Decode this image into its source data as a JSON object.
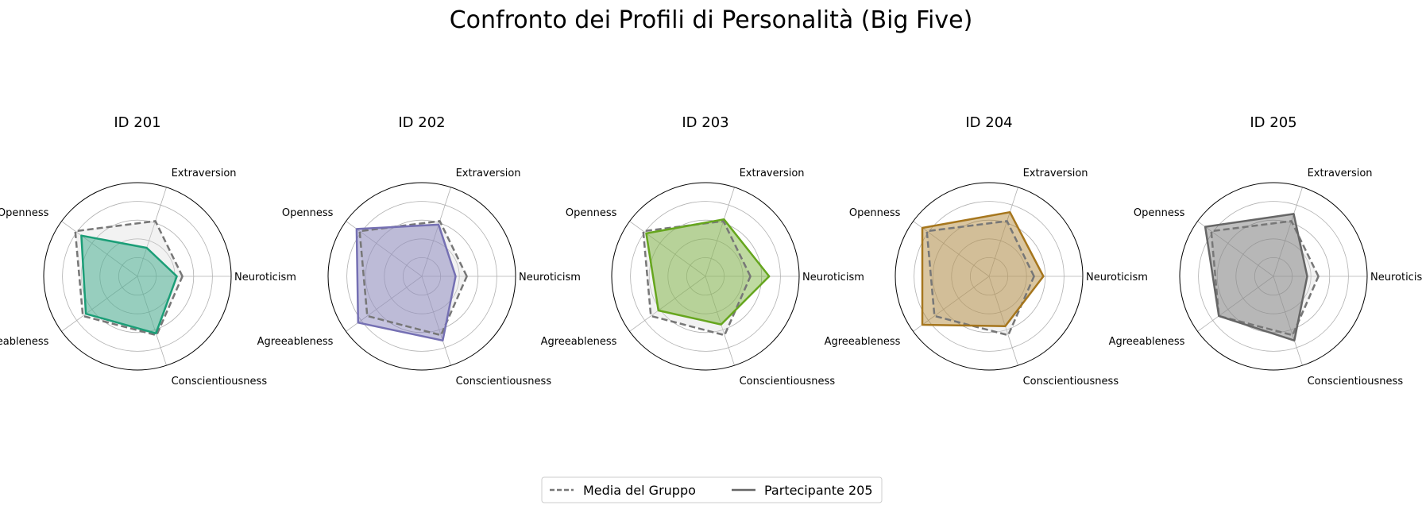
{
  "chart_data": {
    "type": "radar",
    "title": "Confronto dei Profili di Personalità (Big Five)",
    "axes": [
      "Neuroticism",
      "Extraversion",
      "Openness",
      "Agreeableness",
      "Conscientiousness"
    ],
    "rlim": [
      0,
      5
    ],
    "rings": [
      1,
      2,
      3,
      4,
      5
    ],
    "group_mean": {
      "name": "Media del Gruppo",
      "values": [
        2.4,
        3.1,
        4.1,
        3.6,
        3.3
      ],
      "color": "#777777"
    },
    "participants": [
      {
        "title": "ID 201",
        "values": [
          2.1,
          1.6,
          3.7,
          3.4,
          3.2
        ],
        "color": "#1b9e77",
        "fill": "#1b9e77"
      },
      {
        "title": "ID 202",
        "values": [
          1.8,
          2.9,
          4.3,
          4.2,
          3.6
        ],
        "color": "#7570b3",
        "fill": "#7570b3"
      },
      {
        "title": "ID 203",
        "values": [
          3.4,
          3.2,
          3.9,
          3.1,
          2.7
        ],
        "color": "#66a61e",
        "fill": "#66a61e"
      },
      {
        "title": "ID 204",
        "values": [
          2.9,
          3.6,
          4.4,
          4.4,
          2.8
        ],
        "color": "#a6761d",
        "fill": "#a6761d"
      },
      {
        "title": "ID 205",
        "values": [
          1.8,
          3.5,
          4.5,
          3.6,
          3.6
        ],
        "color": "#666666",
        "fill": "#666666"
      }
    ],
    "legend": {
      "position": "bottom-center",
      "entries": [
        {
          "label": "Media del Gruppo",
          "style": "dashed",
          "color": "#777777"
        },
        {
          "label": "Partecipante 205",
          "style": "solid",
          "color": "#666666"
        }
      ]
    }
  }
}
